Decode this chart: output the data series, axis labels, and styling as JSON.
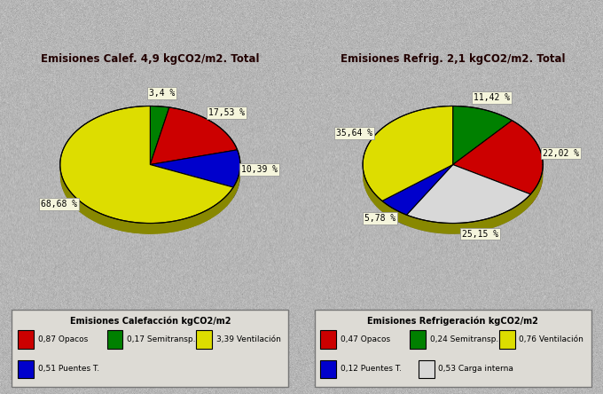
{
  "background_color": "#c8c8c8",
  "background_noise": true,
  "title_calef": "Emisiones Calef. 4,9 kgCO2/m2. Total",
  "title_refrig": "Emisiones Refrig. 2,1 kgCO2/m2. Total",
  "calef_slices_ordered": [
    3.4,
    17.53,
    10.39,
    68.68
  ],
  "calef_colors_ordered": [
    "#008000",
    "#cc0000",
    "#0000cc",
    "#dddd00"
  ],
  "calef_labels_ordered": [
    "3,4 %",
    "17,53 %",
    "10,39 %",
    "68,68 %"
  ],
  "calef_startangle": 90,
  "refrig_slices_ordered": [
    11.42,
    22.02,
    25.15,
    5.78,
    35.64
  ],
  "refrig_colors_ordered": [
    "#008000",
    "#cc0000",
    "#d8d8d8",
    "#0000cc",
    "#dddd00"
  ],
  "refrig_labels_ordered": [
    "11,42 %",
    "22,02 %",
    "25,15 %",
    "5,78 %",
    "35,64 %"
  ],
  "refrig_startangle": 90,
  "legend_calef_title": "Emisiones Calefacción kgCO2/m2",
  "legend_calef_items": [
    [
      "#cc0000",
      "0,87 Opacos"
    ],
    [
      "#008000",
      "0,17 Semitransp."
    ],
    [
      "#dddd00",
      "3,39 Ventilación"
    ],
    [
      "#0000cc",
      "0,51 Puentes T."
    ]
  ],
  "legend_refrig_title": "Emisiones Refrigeración kgCO2/m2",
  "legend_refrig_items": [
    [
      "#cc0000",
      "0,47 Opacos"
    ],
    [
      "#008000",
      "0,24 Semitransp."
    ],
    [
      "#dddd00",
      "0,76 Ventilación"
    ],
    [
      "#0000cc",
      "0,12 Puentes T."
    ],
    [
      "#d8d8d8",
      "0,53 Carga interna"
    ]
  ],
  "shadow_color": "#888800",
  "label_box_color": "#f5f5dc",
  "title_fontsize": 8.5,
  "label_fontsize": 7,
  "legend_fontsize": 6.5,
  "legend_title_fontsize": 7
}
